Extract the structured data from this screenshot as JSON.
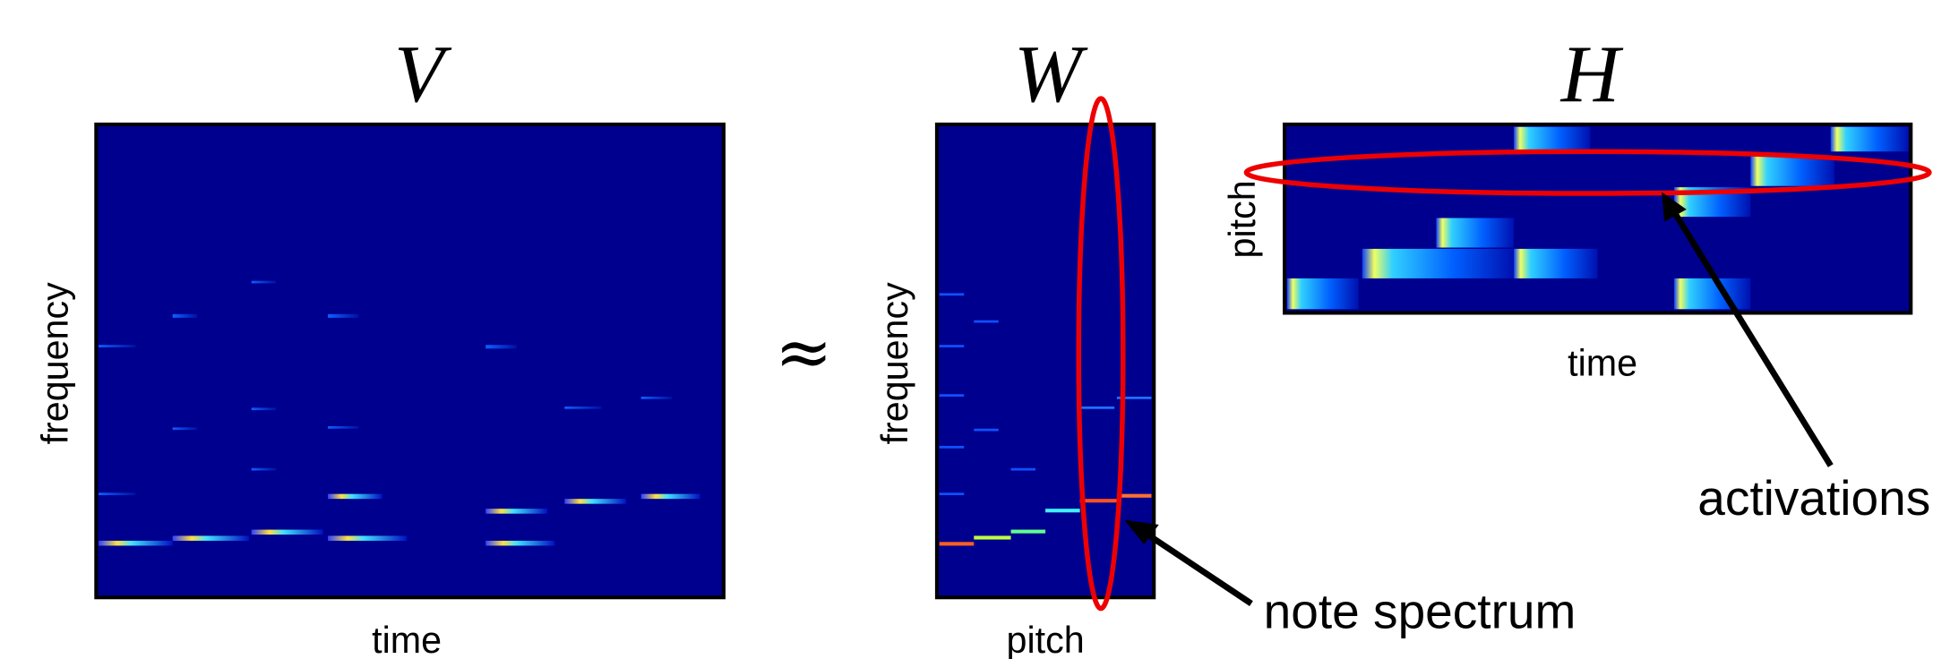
{
  "matrices": [
    {
      "symbol": "V",
      "y_label": "frequency",
      "x_label": "time"
    },
    {
      "symbol": "W",
      "y_label": "frequency",
      "x_label": "pitch"
    },
    {
      "symbol": "H",
      "y_label": "pitch",
      "x_label": "time"
    }
  ],
  "operator": "≈",
  "annotations": [
    {
      "text": "note spectrum"
    },
    {
      "text": "activations"
    }
  ]
}
